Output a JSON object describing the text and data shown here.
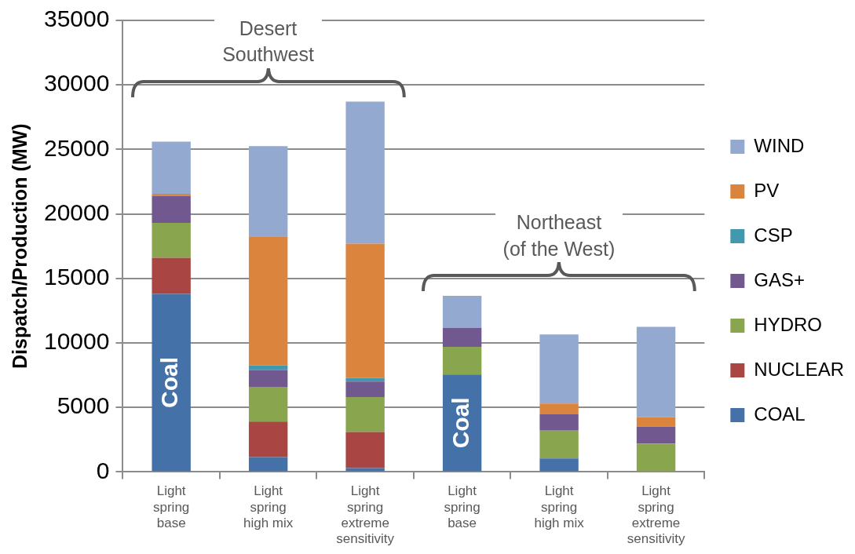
{
  "chart_data": {
    "type": "bar",
    "stacked": true,
    "ylabel": "Dispatch/Production (MW)",
    "categories": [
      "Light spring base",
      "Light spring high mix",
      "Light spring extreme sensitivity",
      "Light spring base",
      "Light spring high mix",
      "Light spring extreme sensitivity"
    ],
    "series": [
      {
        "name": "COAL",
        "color": "#4472a8",
        "values": [
          13800,
          1150,
          300,
          7550,
          1050,
          null
        ]
      },
      {
        "name": "NUCLEAR",
        "color": "#a94543",
        "values": [
          2800,
          2750,
          2800,
          null,
          null,
          null
        ]
      },
      {
        "name": "HYDRO",
        "color": "#89a54e",
        "values": [
          2700,
          2700,
          2700,
          2150,
          2150,
          2200
        ]
      },
      {
        "name": "GAS+",
        "color": "#71588f",
        "values": [
          2100,
          1300,
          1200,
          1450,
          1300,
          1300
        ]
      },
      {
        "name": "CSP",
        "color": "#4298af",
        "values": [
          null,
          350,
          300,
          null,
          null,
          null
        ]
      },
      {
        "name": "PV",
        "color": "#db843d",
        "values": [
          150,
          10000,
          10400,
          null,
          800,
          750
        ]
      },
      {
        "name": "WIND",
        "color": "#93a9cf",
        "values": [
          4050,
          7000,
          11000,
          2500,
          5350,
          7000
        ]
      }
    ],
    "ylim": [
      0,
      35000
    ],
    "yticks": [
      0,
      5000,
      10000,
      15000,
      20000,
      25000,
      30000,
      35000
    ],
    "grid": "y",
    "legend": "right",
    "annotations": [
      "Desert\nSouthwest",
      "Northeast\n(of the West)",
      "Coal",
      "Coal"
    ]
  }
}
